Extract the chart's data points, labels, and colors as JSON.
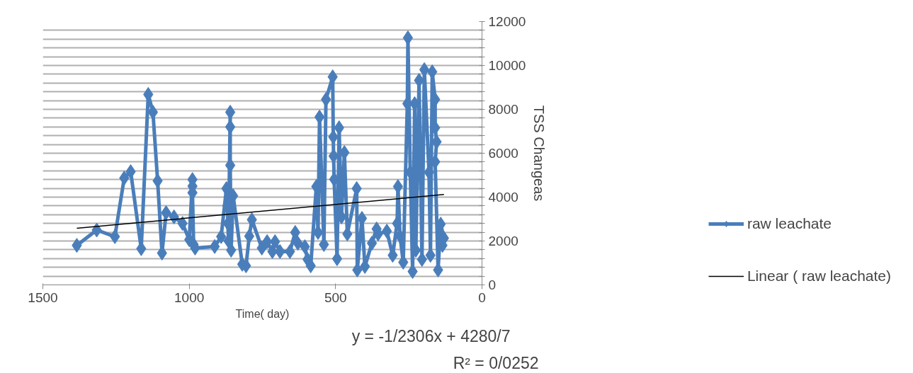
{
  "chart_data": {
    "type": "line",
    "xlabel": "Time( day)",
    "ylabel": "TSS Changeas",
    "xlim": [
      1500,
      0
    ],
    "xticks": [
      1500,
      1000,
      500,
      0
    ],
    "ylim": [
      0,
      12000
    ],
    "yticks": [
      0,
      {
        "value": 400,
        "label": null
      },
      {
        "value": 800,
        "label": null
      },
      {
        "value": 1200,
        "label": null
      },
      {
        "value": 1600,
        "label": null
      },
      2000,
      {
        "value": 2400,
        "label": null
      },
      {
        "value": 2800,
        "label": null
      },
      {
        "value": 3200,
        "label": null
      },
      {
        "value": 3600,
        "label": null
      },
      4000,
      {
        "value": 4400,
        "label": null
      },
      {
        "value": 4800,
        "label": null
      },
      {
        "value": 5200,
        "label": null
      },
      {
        "value": 5600,
        "label": null
      },
      6000,
      {
        "value": 6400,
        "label": null
      },
      {
        "value": 6800,
        "label": null
      },
      {
        "value": 7200,
        "label": null
      },
      {
        "value": 7600,
        "label": null
      },
      8000,
      {
        "value": 8400,
        "label": null
      },
      {
        "value": 8800,
        "label": null
      },
      {
        "value": 9200,
        "label": null
      },
      {
        "value": 9600,
        "label": null
      },
      10000,
      {
        "value": 10400,
        "label": null
      },
      {
        "value": 10800,
        "label": null
      },
      {
        "value": 11200,
        "label": null
      },
      {
        "value": 11600,
        "label": null
      },
      12000
    ],
    "grid": "y",
    "legend": "right",
    "marker": "diamond",
    "line_style": "solid",
    "annotations": [
      "y = -1/2306x + 4280/7",
      "R² = 0/0252"
    ],
    "series": [
      {
        "name": "raw leachate",
        "color": "#4a7ebb",
        "x": [
          1384,
          1316,
          1254,
          1222,
          1200,
          1164,
          1140,
          1124,
          1108,
          1093,
          1079,
          1052,
          1023,
          1000,
          989,
          989,
          989,
          985,
          980,
          913,
          891,
          873,
          870,
          868,
          866,
          860,
          860,
          860,
          857,
          850,
          819,
          806,
          795,
          786,
          752,
          734,
          716,
          707,
          690,
          656,
          638,
          629,
          605,
          596,
          585,
          566,
          560,
          555,
          540,
          533,
          510,
          508,
          507,
          505,
          495,
          488,
          480,
          470,
          460,
          428,
          426,
          410,
          400,
          376,
          360,
          355,
          325,
          305,
          290,
          287,
          280,
          269,
          255,
          253,
          245,
          237,
          230,
          226,
          215,
          205,
          197,
          181,
          176,
          170,
          160,
          160,
          155,
          160,
          150,
          141,
          130,
          135
        ],
        "values": [
          1800,
          2500,
          2200,
          4870,
          5160,
          1650,
          8680,
          7870,
          4740,
          1450,
          3290,
          3100,
          2800,
          2060,
          4800,
          4500,
          4200,
          1840,
          1680,
          1750,
          2200,
          4390,
          3610,
          2800,
          2000,
          7870,
          7200,
          5450,
          1580,
          4060,
          940,
          870,
          2220,
          2970,
          1680,
          1970,
          1520,
          1970,
          1520,
          1520,
          2390,
          1900,
          1740,
          1160,
          870,
          4480,
          2390,
          7650,
          1840,
          8450,
          9480,
          6740,
          5870,
          4810,
          1190,
          7160,
          3100,
          6030,
          2320,
          4390,
          680,
          3030,
          840,
          1900,
          2550,
          2320,
          2450,
          1350,
          2800,
          4480,
          2220,
          1030,
          8260,
          11260,
          5130,
          610,
          8260,
          1580,
          9320,
          1160,
          9810,
          5130,
          1350,
          9710,
          8450,
          7160,
          6520,
          5610,
          680,
          2770,
          2130,
          1800
        ]
      },
      {
        "name": "Linear ( raw leachate)",
        "type": "line",
        "marker": "none",
        "color": "#000000",
        "x": [
          1384,
          130
        ],
        "values": [
          2580,
          4120
        ]
      }
    ]
  }
}
